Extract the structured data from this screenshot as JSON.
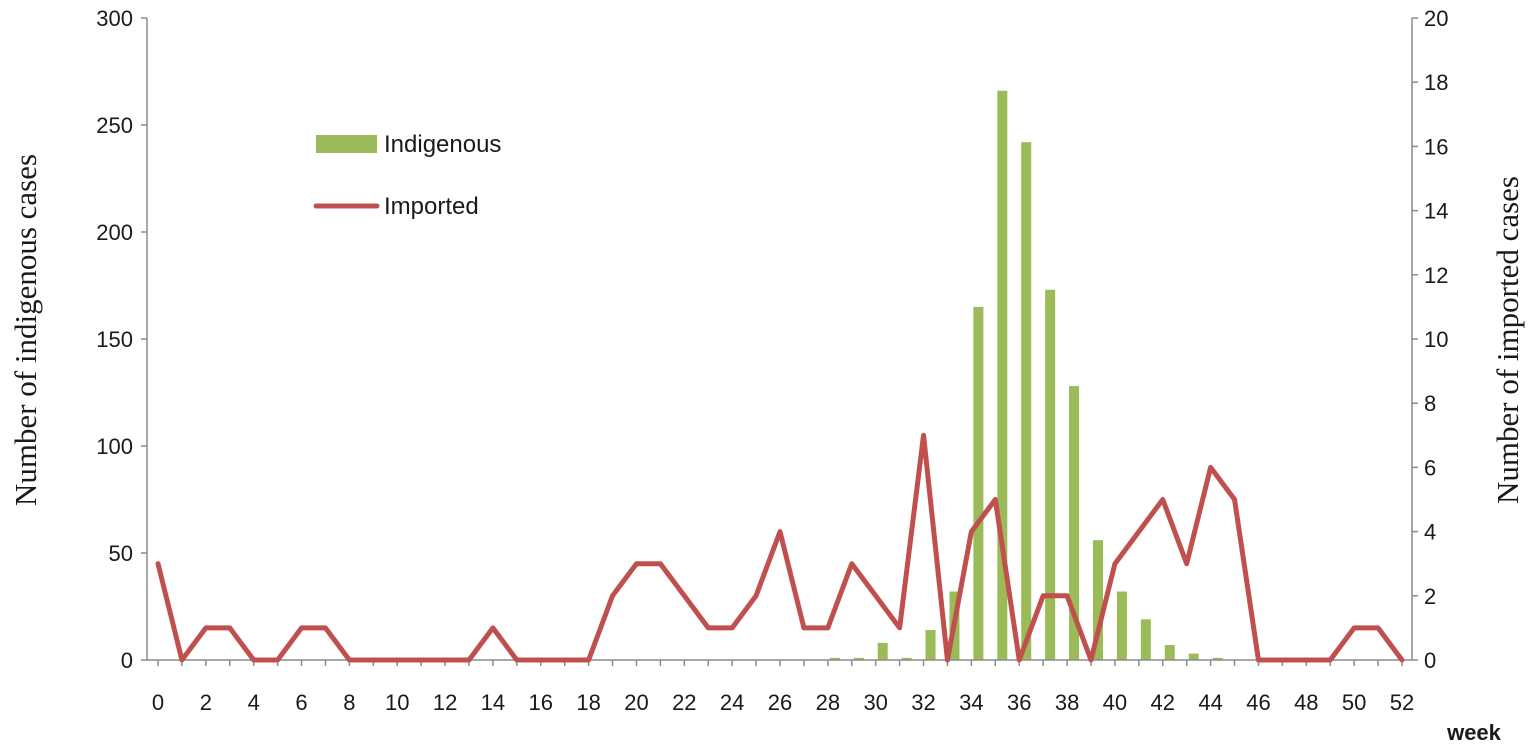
{
  "chart_data": {
    "type": "bar",
    "x": [
      0,
      1,
      2,
      3,
      4,
      5,
      6,
      7,
      8,
      9,
      10,
      11,
      12,
      13,
      14,
      15,
      16,
      17,
      18,
      19,
      20,
      21,
      22,
      23,
      24,
      25,
      26,
      27,
      28,
      29,
      30,
      31,
      32,
      33,
      34,
      35,
      36,
      37,
      38,
      39,
      40,
      41,
      42,
      43,
      44,
      45,
      46,
      47,
      48,
      49,
      50,
      51,
      52
    ],
    "x_ticks": [
      0,
      2,
      4,
      6,
      8,
      10,
      12,
      14,
      16,
      18,
      20,
      22,
      24,
      26,
      28,
      30,
      32,
      34,
      36,
      38,
      40,
      42,
      44,
      46,
      48,
      50,
      52
    ],
    "xlabel": "week",
    "xlim": [
      0,
      52
    ],
    "y_left": {
      "label": "Number of indigenous cases",
      "lim": [
        0,
        300
      ],
      "ticks": [
        0,
        50,
        100,
        150,
        200,
        250,
        300
      ]
    },
    "y_right": {
      "label": "Number of imported cases",
      "lim": [
        0,
        20
      ],
      "ticks": [
        0,
        2,
        4,
        6,
        8,
        10,
        12,
        14,
        16,
        18,
        20
      ]
    },
    "grid": false,
    "legend_position": "upper-left",
    "series": [
      {
        "name": "Indigenous",
        "type": "bar",
        "axis": "left",
        "color": "#9bbb59",
        "values": [
          0,
          0,
          0,
          0,
          0,
          0,
          0,
          0,
          0,
          0,
          0,
          0,
          0,
          0,
          0,
          0,
          0,
          0,
          0,
          0,
          0,
          0,
          0,
          0,
          0,
          0,
          0,
          0,
          1,
          1,
          8,
          1,
          14,
          32,
          165,
          266,
          242,
          173,
          128,
          56,
          32,
          19,
          7,
          3,
          1,
          0,
          0,
          0,
          0,
          0,
          0,
          0,
          0
        ]
      },
      {
        "name": "Imported",
        "type": "line",
        "axis": "right",
        "color": "#c0504d",
        "values": [
          3,
          0,
          1,
          1,
          0,
          0,
          1,
          1,
          0,
          0,
          0,
          0,
          0,
          0,
          1,
          0,
          0,
          0,
          0,
          2,
          3,
          3,
          2,
          1,
          1,
          2,
          4,
          1,
          1,
          3,
          2,
          1,
          7,
          0,
          4,
          5,
          0,
          2,
          2,
          0,
          3,
          4,
          5,
          3,
          6,
          5,
          0,
          0,
          0,
          0,
          1,
          1,
          0
        ]
      }
    ]
  }
}
